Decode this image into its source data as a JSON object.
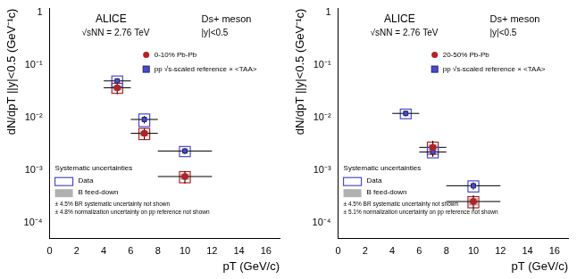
{
  "chart_data": [
    {
      "type": "scatter",
      "x_label": "pT (GeV/c)",
      "y_label": "dN/dpT ||y|<0.5 (GeV⁻¹c)",
      "log": "y",
      "grid": false,
      "xlim": [
        0,
        17
      ],
      "xticks": [
        0,
        2,
        4,
        6,
        8,
        10,
        12,
        14,
        16
      ],
      "ylim": [
        5e-05,
        1.2
      ],
      "yticks": [
        {
          "value": 0.0001,
          "label": "10⁻⁴"
        },
        {
          "value": 0.001,
          "label": "10⁻³"
        },
        {
          "value": 0.01,
          "label": "10⁻²"
        },
        {
          "value": 0.1,
          "label": "10⁻¹"
        },
        1
      ],
      "annotations": [
        "ALICE",
        "√sNN = 2.76 TeV",
        "Ds+ meson",
        "|y|<0.5"
      ],
      "systematics_legend": {
        "title": "Systematic uncertainties",
        "entries": [
          "Data",
          "B feed-down"
        ],
        "notes": [
          "± 4.5% BR systematic uncertainty not shown",
          "± 4.8% normalization uncertainty on pp reference not shown"
        ]
      },
      "series": [
        {
          "name": "0-10% Pb-Pb",
          "color": "#b22222",
          "marker": "circle",
          "x": [
            5,
            7,
            10
          ],
          "xerr": [
            1,
            1,
            2
          ],
          "values": [
            0.037,
            0.005,
            0.00075
          ],
          "yerr": [
            0.009,
            0.0012,
            0.0002
          ],
          "syst": [
            0.008,
            0.0012,
            0.00018
          ],
          "feeddown": [
            0.004,
            0.0006,
            0.0001
          ]
        },
        {
          "name": "pp √s-scaled reference × <TAA>",
          "color": "#4a4ad0",
          "marker": "square",
          "x": [
            5,
            7,
            10
          ],
          "xerr": [
            1,
            1,
            2
          ],
          "values": [
            0.05,
            0.0092,
            0.0023
          ],
          "yerr": [
            0.006,
            0.0015,
            0.0003
          ],
          "syst": [
            0.012,
            0.0025,
            0.0005
          ]
        }
      ]
    },
    {
      "type": "scatter",
      "x_label": "pT (GeV/c)",
      "y_label": "dN/dpT ||y|<0.5 (GeV⁻¹c)",
      "log": "y",
      "grid": false,
      "xlim": [
        0,
        17
      ],
      "xticks": [
        0,
        2,
        4,
        6,
        8,
        10,
        12,
        14,
        16
      ],
      "ylim": [
        5e-05,
        1.2
      ],
      "yticks": [
        {
          "value": 0.0001,
          "label": "10⁻⁴"
        },
        {
          "value": 0.001,
          "label": "10⁻³"
        },
        {
          "value": 0.01,
          "label": "10⁻²"
        },
        {
          "value": 0.1,
          "label": "10⁻¹"
        },
        1
      ],
      "annotations": [
        "ALICE",
        "√sNN = 2.76 TeV",
        "Ds+ meson",
        "|y|<0.5"
      ],
      "systematics_legend": {
        "title": "Systematic uncertainties",
        "entries": [
          "Data",
          "B feed-down"
        ],
        "notes": [
          "± 4.5% BR systematic uncertainty not shown",
          "± 5.1% normalization uncertainty on pp reference not shown"
        ]
      },
      "series": [
        {
          "name": "20-50% Pb-Pb",
          "color": "#b22222",
          "marker": "circle",
          "x": [
            7,
            10
          ],
          "xerr": [
            1,
            2
          ],
          "values": [
            0.0027,
            0.00025
          ],
          "yerr": [
            0.0009,
            8e-05
          ],
          "syst": [
            0.0007,
            6e-05
          ],
          "feeddown": [
            0.0004,
            4e-05
          ]
        },
        {
          "name": "pp √s-scaled reference × <TAA>",
          "color": "#4a4ad0",
          "marker": "square",
          "x": [
            5,
            7,
            10
          ],
          "xerr": [
            1,
            1,
            2
          ],
          "values": [
            0.012,
            0.0022,
            0.0005
          ],
          "yerr": [
            0.0015,
            0.0004,
            8e-05
          ],
          "syst": [
            0.0025,
            0.0005,
            0.00012
          ]
        }
      ]
    }
  ]
}
